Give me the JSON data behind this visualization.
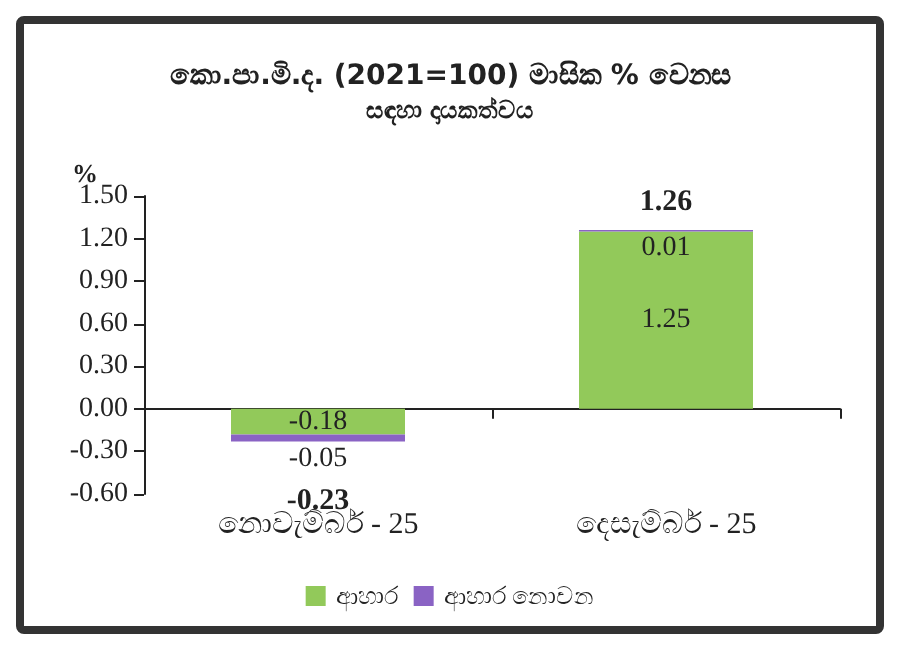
{
  "chart_data": {
    "type": "bar",
    "title": "කො.පා.මි.ද. (2021=100) මාසික % වෙනස",
    "subtitle": "සඳහා දායකත්වය",
    "ylabel": "%",
    "categories": [
      "නොවැම්බර් - 25",
      "දෙසැම්බර් - 25"
    ],
    "series": [
      {
        "name": "ආහාර",
        "color": "#92c95a",
        "values": [
          -0.18,
          1.25
        ]
      },
      {
        "name": "ආහාර නොවන",
        "color": "#8a63c4",
        "values": [
          -0.05,
          0.01
        ]
      }
    ],
    "stacked": true,
    "data_labels": true,
    "totals": [
      "-0.23",
      "1.26"
    ],
    "ylim": [
      -0.6,
      1.5
    ],
    "yticks": [
      {
        "value": -0.6,
        "label": "-0.60"
      },
      {
        "value": -0.3,
        "label": "-0.30"
      },
      {
        "value": 0,
        "label": "0.00"
      },
      {
        "value": 0.3,
        "label": "0.30"
      },
      {
        "value": 0.6,
        "label": "0.60"
      },
      {
        "value": 0.9,
        "label": "0.90"
      },
      {
        "value": 1.2,
        "label": "1.20"
      },
      {
        "value": 1.5,
        "label": "1.50"
      }
    ],
    "legend": "bottom"
  }
}
